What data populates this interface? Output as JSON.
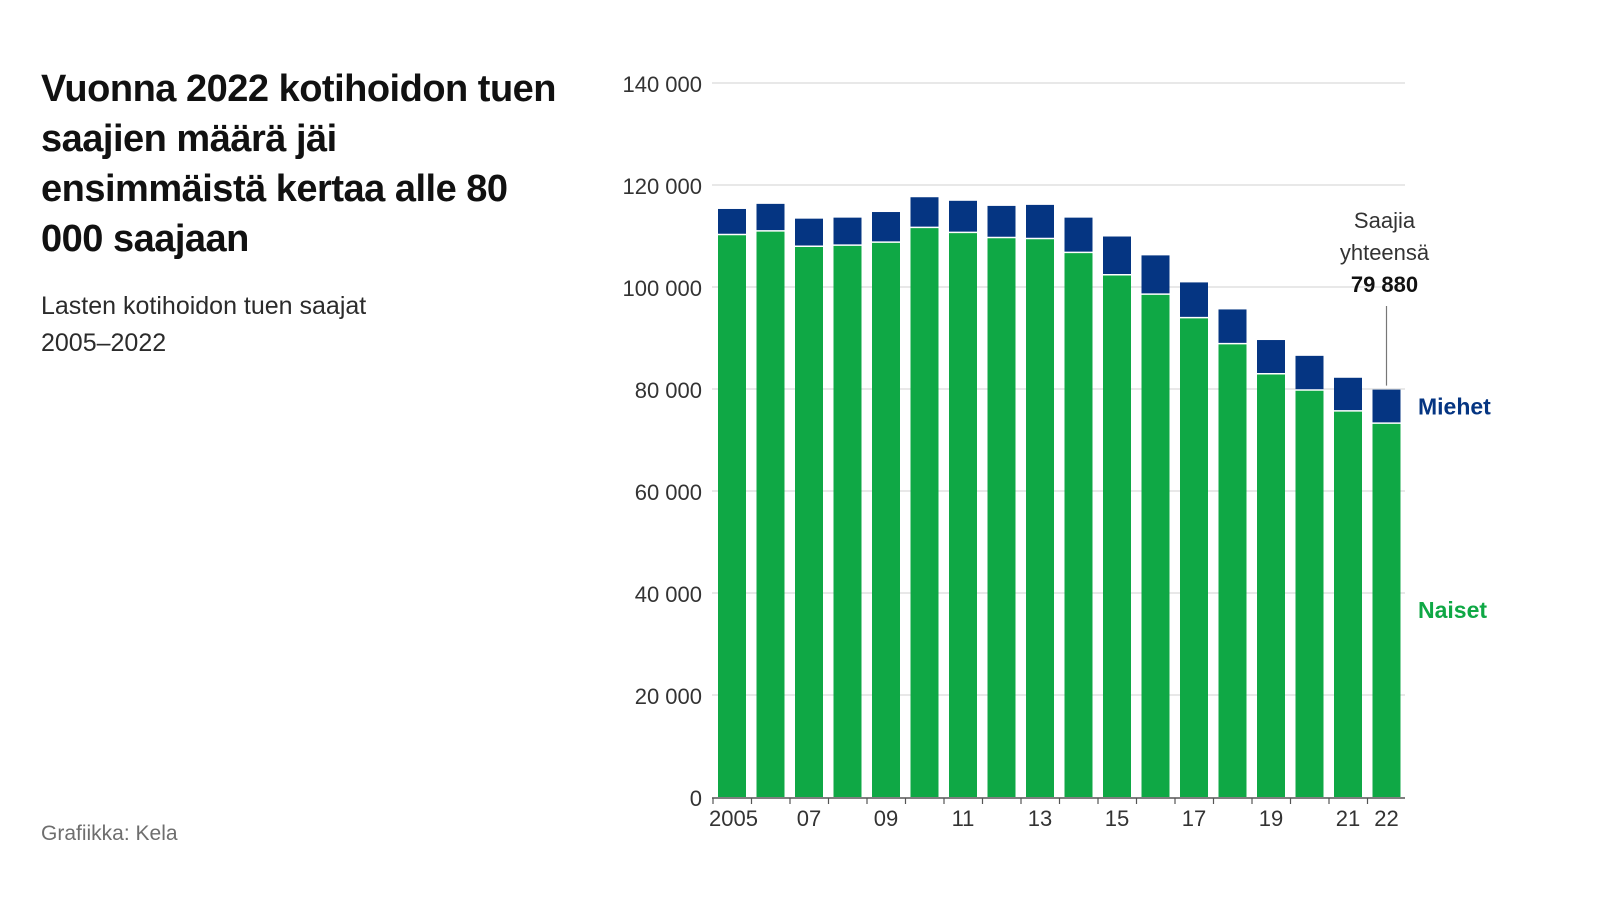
{
  "header": {
    "title": "Vuonna 2022 kotihoidon tuen saajien määrä jäi ensimmäistä kertaa alle 80 000 saajaan",
    "subtitle_line1": "Lasten kotihoidon tuen saajat",
    "subtitle_line2": "2005–2022"
  },
  "footer": {
    "source": "Grafiikka: Kela"
  },
  "colors": {
    "women": "#0fa845",
    "men": "#053582",
    "grid": "#d9d9d9",
    "axis": "#555555",
    "text": "#333333"
  },
  "chart_data": {
    "type": "bar",
    "stacked": true,
    "categories": [
      "2005",
      "2006",
      "2007",
      "2008",
      "2009",
      "2010",
      "2011",
      "2012",
      "2013",
      "2014",
      "2015",
      "2016",
      "2017",
      "2018",
      "2019",
      "2020",
      "2021",
      "2022"
    ],
    "x_tick_labels": [
      "2005",
      "",
      "07",
      "",
      "09",
      "",
      "11",
      "",
      "13",
      "",
      "15",
      "",
      "17",
      "",
      "19",
      "",
      "21",
      "22"
    ],
    "series": [
      {
        "name": "Naiset",
        "color": "#0fa845",
        "values": [
          110300,
          111000,
          108000,
          108200,
          108800,
          111700,
          110700,
          109700,
          109500,
          106800,
          102400,
          98600,
          94000,
          88900,
          83000,
          79800,
          75700,
          73300
        ]
      },
      {
        "name": "Miehet",
        "color": "#053582",
        "values": [
          5000,
          5300,
          5400,
          5400,
          5900,
          5900,
          6200,
          6200,
          6600,
          6800,
          7500,
          7600,
          6900,
          6700,
          6600,
          6700,
          6500,
          6580
        ]
      }
    ],
    "ylim": [
      0,
      140000
    ],
    "y_ticks": [
      0,
      20000,
      40000,
      60000,
      80000,
      100000,
      120000,
      140000
    ],
    "y_tick_labels": [
      "0",
      "20 000",
      "40 000",
      "60 000",
      "80 000",
      "100 000",
      "120 000",
      "140 000"
    ],
    "grid": true,
    "legend": "right, inline next to last bar",
    "annotation": {
      "line1": "Saajia",
      "line2": "yhteensä",
      "value": "79 880",
      "category": "2022",
      "total": 79880
    }
  }
}
